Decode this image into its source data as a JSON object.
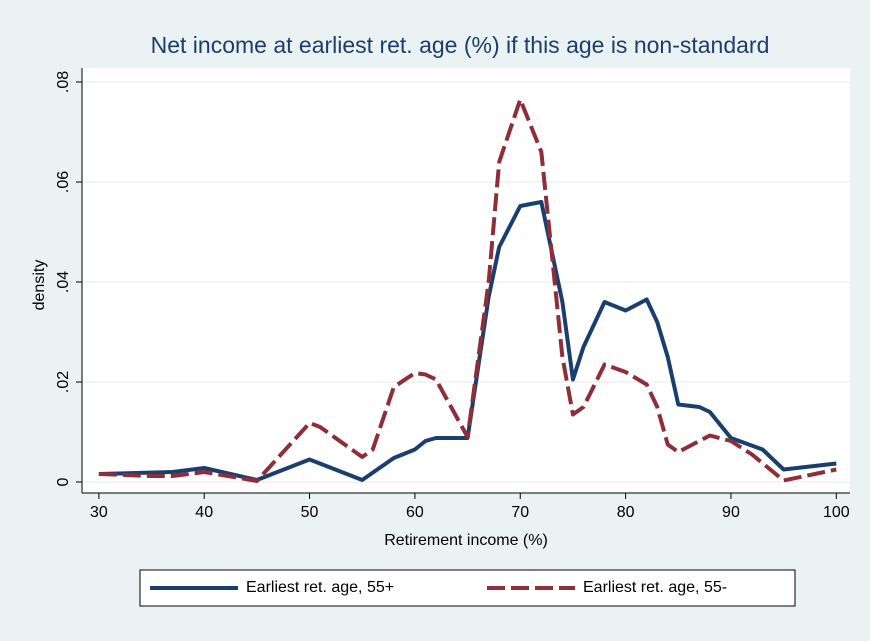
{
  "chart_data": {
    "type": "line",
    "title": "Net income at earliest ret. age (%) if this age is non-standard",
    "x_label": "Retirement income (%)",
    "y_label": "density",
    "xlim": [
      28.4,
      101.3
    ],
    "ylim": [
      -0.0022,
      0.0828
    ],
    "xticks": [
      30,
      40,
      50,
      60,
      70,
      80,
      90,
      100
    ],
    "yticks": [
      0,
      {
        "value": 0.02,
        "label": ".02"
      },
      {
        "value": 0.04,
        "label": ".04"
      },
      {
        "value": 0.06,
        "label": ".06"
      },
      {
        "value": 0.08,
        "label": ".08"
      }
    ],
    "grid": true,
    "series": [
      {
        "name": "Earliest ret. age, 55+",
        "color": "#1a3f6f",
        "dashed": false,
        "x": [
          30,
          37,
          40,
          45,
          50,
          55,
          58,
          60,
          61,
          62,
          65,
          67,
          68,
          70,
          72,
          74,
          75,
          76,
          78,
          80,
          82,
          83,
          84,
          85,
          87,
          88,
          90,
          93,
          95,
          100
        ],
        "values": [
          0.0016,
          0.002,
          0.0028,
          0.0004,
          0.0045,
          0.0004,
          0.0048,
          0.0065,
          0.0082,
          0.0088,
          0.0088,
          0.037,
          0.047,
          0.0552,
          0.056,
          0.036,
          0.0205,
          0.027,
          0.036,
          0.0343,
          0.0365,
          0.032,
          0.025,
          0.0155,
          0.015,
          0.014,
          0.0088,
          0.0065,
          0.0025,
          0.0037
        ]
      },
      {
        "name": "Earliest ret. age, 55-",
        "color": "#8f2d38",
        "dashed": true,
        "x": [
          30,
          35,
          37,
          40,
          45,
          50,
          51,
          55,
          56,
          58,
          60,
          61,
          62,
          65,
          67,
          68,
          70,
          72,
          74,
          75,
          76,
          78,
          80,
          82,
          83,
          84,
          85,
          88,
          90,
          92,
          95,
          100
        ],
        "values": [
          0.0016,
          0.0012,
          0.0012,
          0.002,
          0.0002,
          0.0118,
          0.011,
          0.005,
          0.0065,
          0.019,
          0.0218,
          0.0215,
          0.0205,
          0.009,
          0.04,
          0.064,
          0.0765,
          0.066,
          0.025,
          0.0135,
          0.015,
          0.0235,
          0.022,
          0.0195,
          0.015,
          0.0075,
          0.006,
          0.0093,
          0.0082,
          0.0055,
          0.0003,
          0.0025
        ]
      }
    ]
  }
}
